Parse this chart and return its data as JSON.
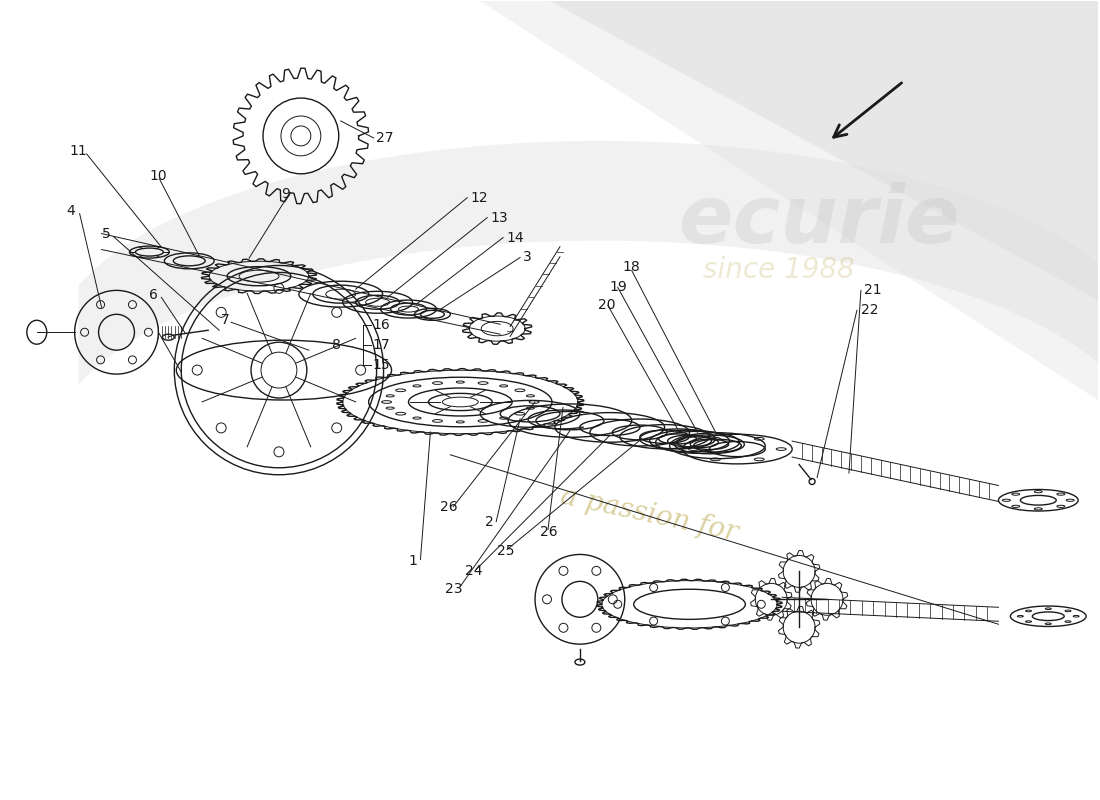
{
  "background_color": "#ffffff",
  "line_color": "#1a1a1a",
  "label_color": "#1a1a1a",
  "label_fontsize": 10,
  "watermark_color": "#c8b86e",
  "fig_width": 11.0,
  "fig_height": 8.0,
  "dpi": 100,
  "grey_bg_color": "#d8d8d8",
  "part_numbers": [
    "1",
    "2",
    "3",
    "4",
    "5",
    "6",
    "7",
    "8",
    "9",
    "10",
    "11",
    "12",
    "13",
    "14",
    "15",
    "16",
    "17",
    "18",
    "19",
    "20",
    "21",
    "22",
    "23",
    "24",
    "25",
    "26",
    "27"
  ]
}
